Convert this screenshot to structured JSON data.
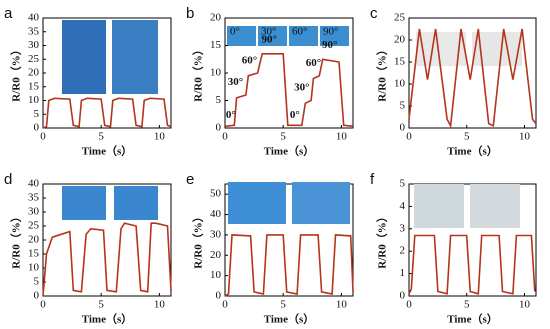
{
  "chart_data": [
    {
      "type": "line",
      "panel": "a",
      "xlabel": "Time（s）",
      "ylabel": "R/R0（%）",
      "color": "#b5341c",
      "xlim": [
        0,
        11
      ],
      "xticks": [
        0,
        5,
        10
      ],
      "ylim": [
        0,
        40
      ],
      "yticks": [
        0,
        5,
        10,
        15,
        20,
        25,
        30,
        35,
        40
      ],
      "x": [
        0,
        0.3,
        0.5,
        1.0,
        2.3,
        2.6,
        3.1,
        3.3,
        3.8,
        5.0,
        5.3,
        5.8,
        6.0,
        6.5,
        7.7,
        8.0,
        8.5,
        8.7,
        9.2,
        10.4,
        10.7,
        11
      ],
      "values": [
        0,
        0.5,
        10,
        10.8,
        10.5,
        1,
        0.5,
        10,
        10.8,
        10.5,
        1,
        0.5,
        10,
        10.8,
        10.5,
        1,
        0.5,
        10,
        10.8,
        10.5,
        1,
        0.5
      ]
    },
    {
      "type": "line",
      "panel": "b",
      "xlabel": "Time（s）",
      "ylabel": "R/R0（%）",
      "color": "#b5341c",
      "xlim": [
        0,
        11
      ],
      "xticks": [
        0,
        5,
        10
      ],
      "ylim": [
        0,
        20
      ],
      "yticks": [
        0,
        5,
        10,
        15,
        20
      ],
      "x": [
        0,
        0.8,
        1.0,
        1.8,
        2.0,
        2.8,
        3.2,
        5.0,
        5.4,
        6.6,
        6.9,
        7.4,
        7.6,
        8.1,
        8.4,
        9.8,
        10.2,
        11
      ],
      "values": [
        0.3,
        0.5,
        5.5,
        6,
        9.5,
        10,
        13.5,
        13.5,
        0.5,
        0.5,
        4.5,
        5,
        9,
        9.5,
        12.5,
        12,
        0.5,
        0.3
      ],
      "annotations": [
        "0°",
        "30°",
        "60°",
        "90°",
        "0°",
        "30°",
        "60°",
        "90°"
      ],
      "photo_labels": [
        "0°",
        "30°",
        "60°",
        "90°"
      ]
    },
    {
      "type": "line",
      "panel": "c",
      "xlabel": "Time（s）",
      "ylabel": "R/R0（%）",
      "color": "#b5341c",
      "xlim": [
        0,
        11
      ],
      "xticks": [
        0,
        5,
        10
      ],
      "ylim": [
        0,
        25
      ],
      "yticks": [
        0,
        5,
        10,
        15,
        20,
        25
      ],
      "x": [
        0,
        0.9,
        1.6,
        2.3,
        3.3,
        3.6,
        4.5,
        5.3,
        6.0,
        6.9,
        7.3,
        8.2,
        9.0,
        9.8,
        10.7,
        11
      ],
      "values": [
        2,
        22.5,
        11,
        22.5,
        2,
        0.5,
        22.5,
        11,
        22.5,
        1,
        0.5,
        22.5,
        11,
        22.5,
        2,
        1
      ]
    },
    {
      "type": "line",
      "panel": "d",
      "xlabel": "Time（s）",
      "ylabel": "R/R0（%）",
      "color": "#b5341c",
      "xlim": [
        0,
        11
      ],
      "xticks": [
        0,
        5,
        10
      ],
      "ylim": [
        0,
        40
      ],
      "yticks": [
        0,
        5,
        10,
        15,
        20,
        25,
        30,
        35,
        40
      ],
      "x": [
        0,
        0.3,
        0.8,
        2.3,
        2.6,
        3.3,
        3.7,
        4.1,
        5.2,
        5.5,
        6.3,
        6.7,
        7.0,
        8.0,
        8.4,
        9.0,
        9.3,
        9.7,
        10.7,
        11
      ],
      "values": [
        0,
        15,
        21,
        23,
        2,
        1.5,
        22,
        24,
        23.5,
        2,
        1.5,
        24,
        26,
        25,
        2,
        1.5,
        26,
        26,
        25,
        2
      ]
    },
    {
      "type": "line",
      "panel": "e",
      "xlabel": "Time（s）",
      "ylabel": "R/R0（%）",
      "color": "#b5341c",
      "xlim": [
        0,
        11
      ],
      "xticks": [
        0,
        5,
        10
      ],
      "ylim": [
        0,
        55
      ],
      "yticks": [
        0,
        10,
        20,
        30,
        40,
        50
      ],
      "x": [
        0,
        0.3,
        0.6,
        2.2,
        2.5,
        3.3,
        3.6,
        5.0,
        5.3,
        6.2,
        6.5,
        8.0,
        8.3,
        9.2,
        9.5,
        10.8,
        11
      ],
      "values": [
        0,
        1,
        30,
        29.5,
        2,
        1,
        30,
        30,
        2,
        1,
        30,
        30,
        2,
        1,
        30,
        29.5,
        2
      ]
    },
    {
      "type": "line",
      "panel": "f",
      "xlabel": "Time（s）",
      "ylabel": "R/R0（%）",
      "color": "#b5341c",
      "xlim": [
        0,
        11
      ],
      "xticks": [
        0,
        5,
        10
      ],
      "ylim": [
        0,
        5
      ],
      "yticks": [
        0,
        1,
        2,
        3,
        4,
        5
      ],
      "x": [
        0,
        0.2,
        0.5,
        2.2,
        2.5,
        3.3,
        3.6,
        5.0,
        5.3,
        6.0,
        6.3,
        7.8,
        8.1,
        9.0,
        9.3,
        10.6,
        10.9
      ],
      "values": [
        0.1,
        0.3,
        2.7,
        2.7,
        0.2,
        0.1,
        2.7,
        2.7,
        0.2,
        0.1,
        2.7,
        2.7,
        0.2,
        0.1,
        2.7,
        2.7,
        0.2
      ]
    }
  ]
}
